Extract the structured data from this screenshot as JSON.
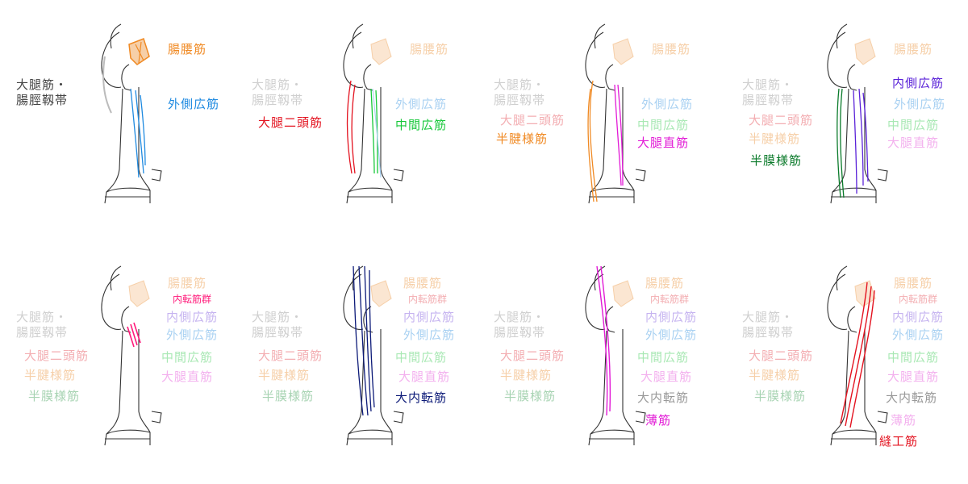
{
  "colors": {
    "gray": "#444444",
    "gray_faint": "#cfcfcf",
    "orange": "#f08a24",
    "orange_faint": "#f6cfa8",
    "blue": "#1f8ae0",
    "blue_faint": "#a9d1f2",
    "red": "#e3121f",
    "red_faint": "#f3aeb2",
    "green": "#17c83a",
    "green_faint": "#a9e8b4",
    "magenta": "#e21ad6",
    "magenta_faint": "#f3b0ee",
    "darkgreen": "#0a7a2a",
    "darkgreen_faint": "#a7d3b2",
    "purple": "#5a22d8",
    "purple_faint": "#c6b4f0",
    "navy": "#0c1a78",
    "pink": "#ff1a7a"
  },
  "labels": {
    "iliopsoas": "腸腰筋",
    "tfl_1": "大腿筋・",
    "tfl_2": "腸脛靱帯",
    "vastus_lateralis": "外側広筋",
    "biceps_femoris": "大腿二頭筋",
    "vastus_intermedius": "中間広筋",
    "semitendinosus": "半腱様筋",
    "rectus_femoris": "大腿直筋",
    "vastus_medialis": "内側広筋",
    "semimembranosus": "半膜様筋",
    "adductor_group": "内転筋群",
    "adductor_magnus": "大内転筋",
    "gracilis": "薄筋",
    "sartorius": "縫工筋"
  }
}
